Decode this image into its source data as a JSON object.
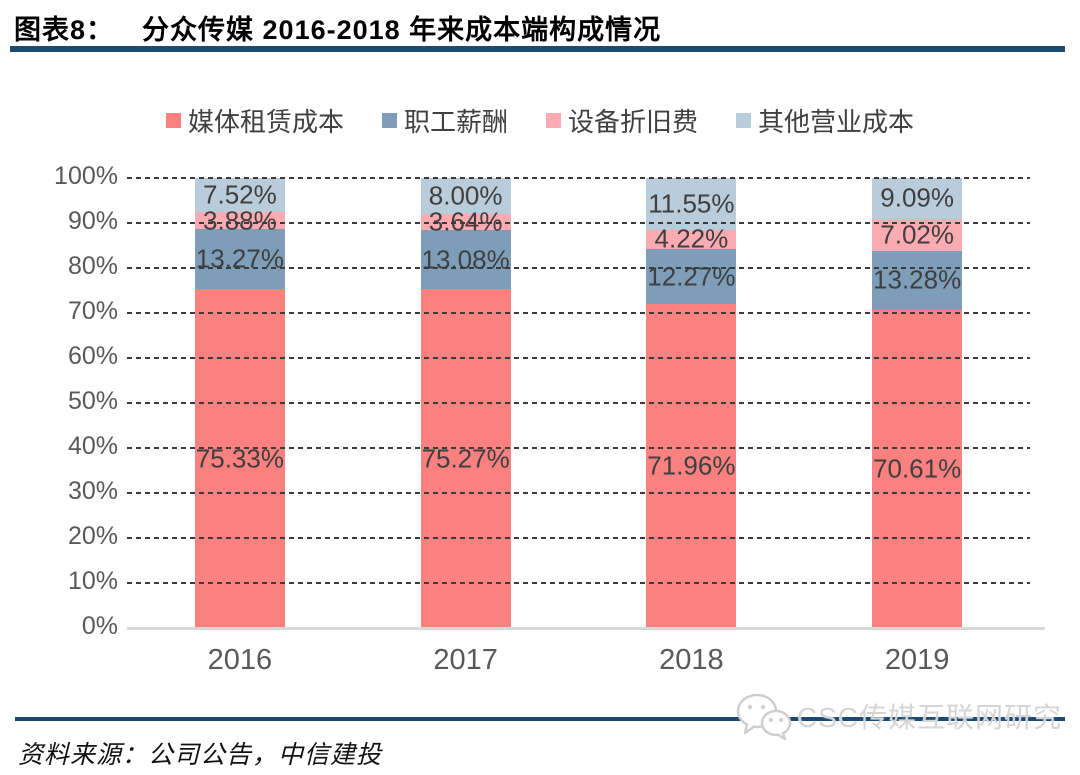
{
  "header": {
    "prefix": "图表8：",
    "title": "分众传媒 2016-2018 年来成本端构成情况"
  },
  "chart_data": {
    "type": "bar",
    "stacked": true,
    "title": "分众传媒 2016-2018 年来成本端构成情况",
    "categories": [
      "2016",
      "2017",
      "2018",
      "2019"
    ],
    "series": [
      {
        "name": "媒体租赁成本",
        "color": "#FB8080",
        "values": [
          75.33,
          75.27,
          71.96,
          70.61
        ]
      },
      {
        "name": "职工薪酬",
        "color": "#7E9DB9",
        "values": [
          13.27,
          13.08,
          12.27,
          13.28
        ]
      },
      {
        "name": "设备折旧费",
        "color": "#FBABB1",
        "values": [
          3.88,
          3.64,
          4.22,
          7.02
        ]
      },
      {
        "name": "其他营业成本",
        "color": "#B9CCDB",
        "values": [
          7.52,
          8.0,
          11.55,
          9.09
        ]
      }
    ],
    "value_suffix": "%",
    "value_decimals": 2,
    "ylim": [
      0,
      100
    ],
    "yticks": [
      "100%",
      "90%",
      "80%",
      "70%",
      "60%",
      "50%",
      "40%",
      "30%",
      "20%",
      "10%",
      "0%"
    ],
    "grid": "horizontal-dashed",
    "legend_position": "top"
  },
  "footer": {
    "source": "资料来源：公司公告，中信建投",
    "watermark": "CSC传媒互联网研究",
    "watermark_icon": "wechat-icon"
  },
  "colors": {
    "accent_line": "#1B4A72",
    "grid": "#3B3B3B",
    "axis": "#D8D8D8",
    "tick_text": "#595959",
    "label_text": "#3F3F3F",
    "watermark_text": "#D5D5D5"
  }
}
